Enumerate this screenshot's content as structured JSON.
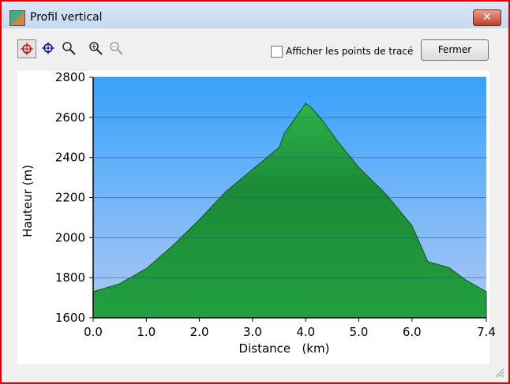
{
  "window": {
    "title": "Profil vertical",
    "checkbox_label": "Afficher les points de tracé",
    "button": "Fermer"
  },
  "chart_data": {
    "type": "area",
    "x_label": "Distance   (km)",
    "y_label": "Hauteur (m)",
    "x": [
      0,
      0.5,
      1.0,
      1.5,
      2.0,
      2.5,
      3.0,
      3.5,
      3.6,
      4.0,
      4.1,
      4.3,
      4.6,
      5.0,
      5.5,
      6.0,
      6.3,
      6.7,
      7.0,
      7.4
    ],
    "values": [
      1730,
      1770,
      1845,
      1960,
      2090,
      2230,
      2340,
      2450,
      2520,
      2670,
      2650,
      2590,
      2480,
      2350,
      2220,
      2060,
      1880,
      1850,
      1790,
      1730
    ],
    "color": "#1e9a3e",
    "xlim": [
      0,
      7.4
    ],
    "ylim": [
      1600,
      2800
    ],
    "xticks": [
      {
        "value": 0,
        "label": "0.0"
      },
      {
        "value": 1,
        "label": "1.0"
      },
      {
        "value": 2,
        "label": "2.0"
      },
      {
        "value": 3,
        "label": "3.0"
      },
      {
        "value": 4,
        "label": "4.0"
      },
      {
        "value": 5,
        "label": "5.0"
      },
      {
        "value": 6,
        "label": "6.0"
      },
      7.4
    ],
    "yticks": [
      1600,
      1800,
      2000,
      2200,
      2400,
      2600,
      2800
    ],
    "grid": true
  }
}
